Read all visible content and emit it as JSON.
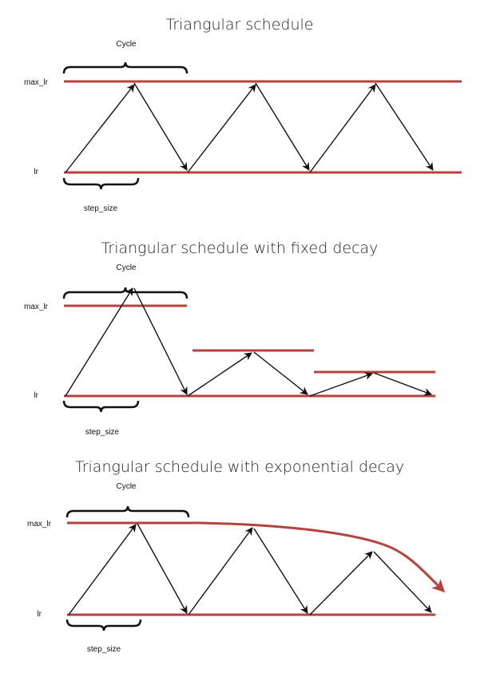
{
  "colors": {
    "bound_line": "#b5423d",
    "arrow": "#111111"
  },
  "panels": [
    {
      "title": "Triangular schedule",
      "cycle_label": "Cycle",
      "max_label": "max_lr",
      "min_label": "lr",
      "step_label": "step_size"
    },
    {
      "title": "Triangular schedule with fixed decay",
      "cycle_label": "Cycle",
      "max_label": "max_lr",
      "min_label": "lr",
      "step_label": "step_size"
    },
    {
      "title": "Triangular schedule with exponential decay",
      "cycle_label": "Cycle",
      "max_label": "max_lr",
      "min_label": "lr",
      "step_label": "step_size"
    }
  ]
}
